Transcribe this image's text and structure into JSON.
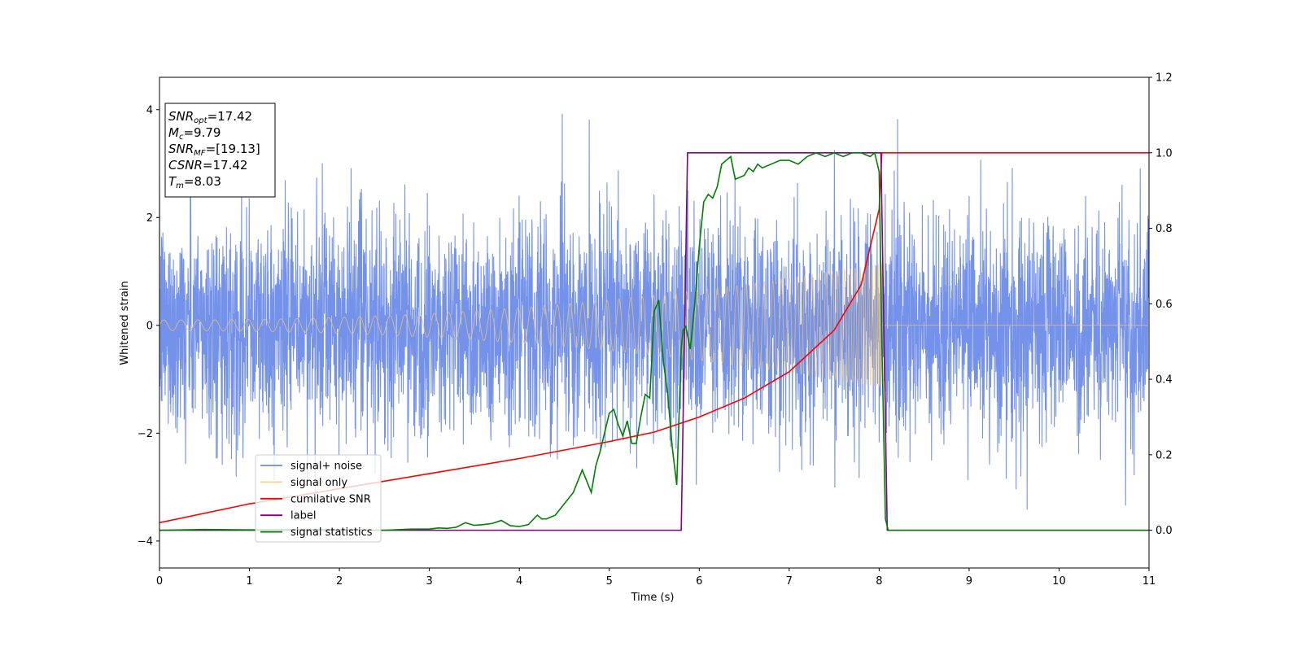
{
  "chart_data": {
    "type": "line",
    "xlabel": "Time (s)",
    "ylabel_left": "Whitened strain",
    "ylabel_right": "",
    "xlim": [
      0,
      11
    ],
    "ylim_left": [
      -4.5,
      4.6
    ],
    "ylim_right": [
      -0.1,
      1.2
    ],
    "x_ticks": [
      0,
      1,
      2,
      3,
      4,
      5,
      6,
      7,
      8,
      9,
      10,
      11
    ],
    "y_ticks_left": [
      -4,
      -2,
      0,
      2,
      4
    ],
    "y_ticks_right": [
      "0.0",
      "0.2",
      "0.4",
      "0.6",
      "0.8",
      "1.0",
      "1.2"
    ],
    "grid": false,
    "legend_position": "lower-left",
    "annotation": [
      {
        "base": "SNR",
        "sub": "opt",
        "value": "=17.42"
      },
      {
        "base": "M",
        "sub": "c",
        "value": "=9.79"
      },
      {
        "base": "SNR",
        "sub": "MF",
        "value": "=[19.13]"
      },
      {
        "base": "CSNR",
        "sub": "",
        "value": "=17.42"
      },
      {
        "base": "T",
        "sub": "m",
        "value": "=8.03"
      }
    ],
    "series": [
      {
        "name": "signal+ noise",
        "axis": "left",
        "color": "#6d8ce8",
        "description": "Gaussian whitened noise of std ~1 with peaks up to ~4.2, spanning 0-11 s",
        "x_range": [
          0,
          11
        ],
        "noise_std": 1.0
      },
      {
        "name": "signal only",
        "axis": "left",
        "color": "#f5c46a",
        "description": "Chirp with amplitude growing from ~0.1 to ~1.1 as time approaches merger at 8.03 s, zero afterwards",
        "t_merger": 8.03,
        "amp_start": 0.1,
        "amp_end": 1.15
      },
      {
        "name": "cumilative SNR",
        "axis": "right",
        "color": "#ff0000",
        "x": [
          0,
          1,
          2,
          3,
          4,
          5,
          5.5,
          6,
          6.5,
          7,
          7.5,
          7.8,
          8.0,
          8.03,
          8.04,
          11
        ],
        "y": [
          0.02,
          0.07,
          0.11,
          0.15,
          0.19,
          0.235,
          0.26,
          0.3,
          0.35,
          0.42,
          0.53,
          0.65,
          0.85,
          1.0,
          1.0,
          1.0
        ]
      },
      {
        "name": "label",
        "axis": "right",
        "color": "#800080",
        "x": [
          0,
          5.8,
          5.87,
          8.02,
          8.09,
          11
        ],
        "y": [
          0,
          0,
          1,
          1,
          0,
          0
        ]
      },
      {
        "name": "signal statistics",
        "axis": "right",
        "color": "#008000",
        "x": [
          0,
          0.5,
          1,
          1.5,
          2,
          2.5,
          2.8,
          3,
          3.1,
          3.2,
          3.3,
          3.4,
          3.5,
          3.6,
          3.7,
          3.8,
          3.9,
          4.0,
          4.1,
          4.2,
          4.25,
          4.3,
          4.4,
          4.5,
          4.6,
          4.7,
          4.75,
          4.8,
          4.85,
          4.9,
          5.0,
          5.05,
          5.1,
          5.15,
          5.2,
          5.25,
          5.3,
          5.35,
          5.4,
          5.45,
          5.5,
          5.55,
          5.6,
          5.65,
          5.7,
          5.75,
          5.8,
          5.82,
          5.85,
          5.9,
          5.95,
          6.0,
          6.05,
          6.1,
          6.15,
          6.2,
          6.25,
          6.3,
          6.35,
          6.4,
          6.5,
          6.55,
          6.6,
          6.65,
          6.7,
          6.8,
          6.9,
          7.0,
          7.1,
          7.2,
          7.3,
          7.4,
          7.5,
          7.6,
          7.7,
          7.8,
          7.9,
          7.95,
          8.0,
          8.03,
          8.07,
          8.1,
          11
        ],
        "y": [
          0.0,
          0.002,
          0.001,
          0.002,
          0.002,
          0.0,
          0.003,
          0.003,
          0.006,
          0.005,
          0.008,
          0.02,
          0.013,
          0.015,
          0.018,
          0.026,
          0.012,
          0.01,
          0.015,
          0.04,
          0.03,
          0.03,
          0.04,
          0.07,
          0.1,
          0.16,
          0.13,
          0.1,
          0.17,
          0.21,
          0.31,
          0.32,
          0.28,
          0.25,
          0.29,
          0.23,
          0.23,
          0.3,
          0.36,
          0.35,
          0.58,
          0.61,
          0.45,
          0.36,
          0.22,
          0.12,
          0.48,
          0.53,
          0.54,
          0.48,
          0.6,
          0.75,
          0.87,
          0.89,
          0.88,
          0.91,
          0.97,
          0.98,
          0.99,
          0.93,
          0.94,
          0.96,
          0.95,
          0.97,
          0.96,
          0.97,
          0.98,
          0.98,
          0.97,
          0.99,
          1.0,
          0.99,
          1.0,
          0.99,
          1.0,
          1.0,
          0.99,
          1.0,
          0.95,
          0.5,
          0.03,
          0.0,
          0.0
        ]
      }
    ]
  }
}
